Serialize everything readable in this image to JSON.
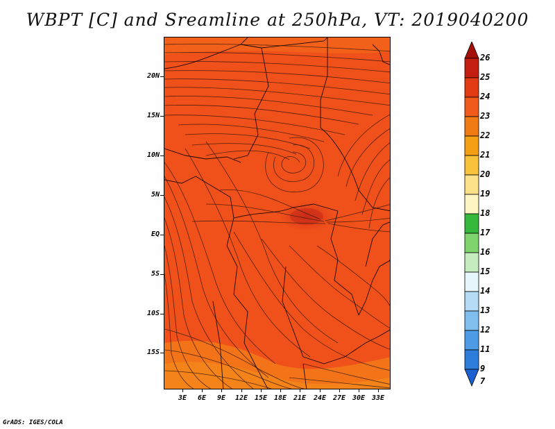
{
  "title": "WBPT [C] and Sreamline at 250hPa, VT: 2019040200",
  "credit": "GrADS: IGES/COLA",
  "lat_labels": [
    "20N",
    "15N",
    "10N",
    "5N",
    "EQ",
    "5S",
    "10S",
    "15S"
  ],
  "lon_labels": [
    "3E",
    "6E",
    "9E",
    "12E",
    "15E",
    "18E",
    "21E",
    "24E",
    "27E",
    "30E",
    "33E"
  ],
  "colorbar": {
    "labels": [
      "26",
      "25",
      "24",
      "23",
      "22",
      "21",
      "20",
      "19",
      "18",
      "17",
      "16",
      "15",
      "14",
      "13",
      "12",
      "11",
      "9",
      "7"
    ],
    "colors": [
      "#a50f0a",
      "#c41e10",
      "#e23a12",
      "#f05a1a",
      "#f07a14",
      "#f5a014",
      "#f9c23c",
      "#fde18a",
      "#fff5c2",
      "#36b83c",
      "#7fd46e",
      "#c4ecbc",
      "#e6f5fb",
      "#b4daf6",
      "#80bef0",
      "#4f9ce6",
      "#2e7ddb",
      "#1c5fd0"
    ]
  },
  "field_colors": {
    "dominant": "#f0501a",
    "warm_core": "#d8321c",
    "cool_south": "#f37418"
  }
}
